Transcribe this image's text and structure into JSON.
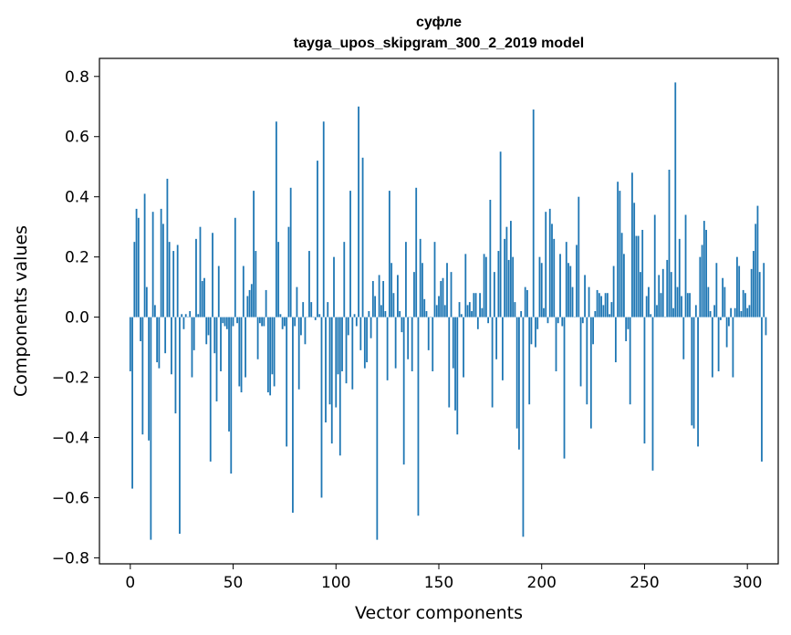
{
  "chart_data": {
    "type": "bar",
    "title_line1": "суфле",
    "title_line2": "tayga_upos_skipgram_300_2_2019 model",
    "xlabel": "Vector components",
    "ylabel": "Components values",
    "xlim": [
      -15,
      315
    ],
    "ylim": [
      -0.82,
      0.86
    ],
    "x_ticks": [
      0,
      50,
      100,
      150,
      200,
      250,
      300
    ],
    "x_tick_labels": [
      "0",
      "50",
      "100",
      "150",
      "200",
      "250",
      "300"
    ],
    "y_ticks": [
      -0.8,
      -0.6,
      -0.4,
      -0.2,
      0.0,
      0.2,
      0.4,
      0.6,
      0.8
    ],
    "y_tick_labels": [
      "−0.8",
      "−0.6",
      "−0.4",
      "−0.2",
      "0.0",
      "0.2",
      "0.4",
      "0.6",
      "0.8"
    ],
    "bar_color": "#1f77b4",
    "grid": false,
    "values": [
      -0.18,
      -0.57,
      0.25,
      0.36,
      0.33,
      -0.08,
      -0.39,
      0.41,
      0.1,
      -0.41,
      -0.74,
      0.35,
      0.04,
      -0.15,
      -0.17,
      0.36,
      0.31,
      -0.12,
      0.46,
      0.25,
      -0.19,
      0.22,
      -0.32,
      0.24,
      -0.72,
      0.01,
      -0.04,
      0.01,
      0.0,
      0.02,
      -0.2,
      -0.11,
      0.26,
      0.01,
      0.3,
      0.12,
      0.13,
      -0.09,
      -0.06,
      -0.48,
      0.28,
      -0.12,
      -0.28,
      0.17,
      -0.18,
      -0.02,
      -0.03,
      -0.04,
      -0.38,
      -0.52,
      -0.03,
      0.33,
      -0.02,
      -0.23,
      -0.25,
      0.17,
      -0.2,
      0.07,
      0.09,
      0.11,
      0.42,
      0.22,
      -0.14,
      -0.02,
      -0.03,
      -0.03,
      0.09,
      -0.25,
      -0.26,
      -0.19,
      -0.23,
      0.65,
      0.25,
      0.01,
      -0.04,
      -0.03,
      -0.43,
      0.3,
      0.43,
      -0.65,
      -0.03,
      0.1,
      -0.24,
      -0.06,
      0.05,
      -0.09,
      0.0,
      0.22,
      0.05,
      0.0,
      -0.01,
      0.52,
      0.01,
      -0.6,
      0.65,
      -0.35,
      0.05,
      -0.29,
      -0.42,
      0.2,
      -0.3,
      -0.19,
      -0.46,
      -0.18,
      0.25,
      -0.22,
      -0.06,
      0.42,
      -0.24,
      0.01,
      -0.03,
      0.7,
      -0.11,
      0.53,
      -0.17,
      -0.15,
      0.02,
      -0.07,
      0.12,
      0.07,
      -0.74,
      0.14,
      0.04,
      0.12,
      0.02,
      -0.21,
      0.42,
      0.18,
      0.08,
      -0.17,
      0.14,
      0.02,
      -0.05,
      -0.49,
      0.25,
      -0.14,
      0.0,
      -0.18,
      0.15,
      0.43,
      -0.66,
      0.26,
      0.18,
      0.06,
      0.02,
      -0.11,
      0.0,
      -0.18,
      0.25,
      0.04,
      0.07,
      0.12,
      0.13,
      0.04,
      0.18,
      -0.3,
      0.15,
      -0.17,
      -0.31,
      -0.39,
      0.05,
      0.01,
      -0.2,
      0.21,
      0.04,
      0.05,
      0.02,
      0.08,
      0.08,
      -0.04,
      0.08,
      0.03,
      0.21,
      0.2,
      -0.02,
      0.39,
      -0.3,
      0.15,
      -0.14,
      0.22,
      0.55,
      -0.21,
      0.26,
      0.3,
      0.19,
      0.32,
      0.2,
      0.05,
      -0.37,
      -0.44,
      0.02,
      -0.73,
      0.1,
      0.09,
      -0.29,
      -0.09,
      0.69,
      -0.1,
      -0.04,
      0.2,
      0.18,
      0.03,
      0.35,
      -0.02,
      0.36,
      0.31,
      0.26,
      -0.18,
      -0.02,
      0.21,
      -0.03,
      -0.47,
      0.25,
      0.18,
      0.17,
      0.1,
      0.0,
      0.24,
      0.4,
      -0.23,
      -0.02,
      0.14,
      -0.29,
      0.1,
      -0.37,
      -0.09,
      0.02,
      0.09,
      0.08,
      0.07,
      0.04,
      0.08,
      0.08,
      0.01,
      0.05,
      0.17,
      -0.15,
      0.45,
      0.42,
      0.28,
      0.21,
      -0.08,
      -0.04,
      -0.29,
      0.48,
      0.38,
      0.27,
      0.27,
      0.15,
      0.29,
      -0.42,
      0.07,
      0.1,
      0.01,
      -0.51,
      0.34,
      0.04,
      0.14,
      0.08,
      0.16,
      0.0,
      0.19,
      0.49,
      0.15,
      0.03,
      0.78,
      0.1,
      0.26,
      0.07,
      -0.14,
      0.34,
      0.08,
      0.08,
      -0.36,
      -0.37,
      0.04,
      -0.43,
      0.2,
      0.24,
      0.32,
      0.29,
      0.1,
      0.02,
      -0.2,
      0.04,
      0.18,
      -0.18,
      -0.01,
      0.13,
      0.1,
      -0.1,
      -0.03,
      0.03,
      -0.2,
      0.03,
      0.2,
      0.17,
      0.02,
      0.09,
      0.08,
      0.03,
      0.04,
      0.16,
      0.22,
      0.31,
      0.37,
      0.15,
      -0.48,
      0.18,
      -0.06
    ]
  }
}
